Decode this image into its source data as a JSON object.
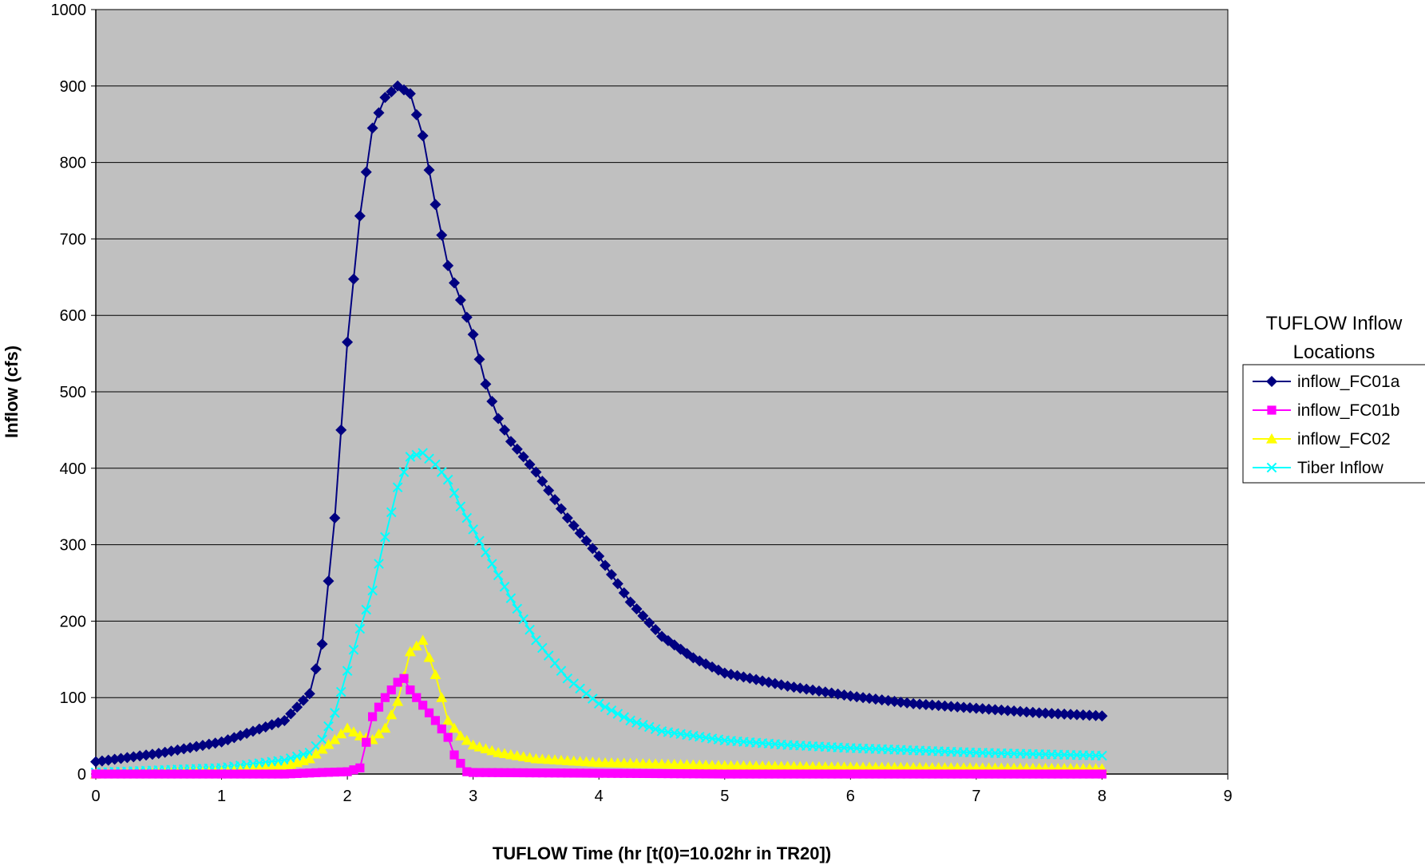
{
  "chart_data": {
    "type": "line",
    "xlabel": "TUFLOW Time (hr [t(0)=10.02hr in TR20])",
    "ylabel": "Inflow (cfs)",
    "xlim": [
      0,
      9
    ],
    "ylim": [
      0,
      1000
    ],
    "xticks": [
      "0",
      "1",
      "2",
      "3",
      "4",
      "5",
      "6",
      "7",
      "8",
      "9"
    ],
    "yticks": [
      "0",
      "100",
      "200",
      "300",
      "400",
      "500",
      "600",
      "700",
      "800",
      "900",
      "1000"
    ],
    "plot_background": "#c0c0c0",
    "grid": "horizontal",
    "legend": {
      "title": [
        "TUFLOW Inflow",
        "Locations"
      ],
      "position": "right"
    },
    "series": [
      {
        "name": "inflow_FC01a",
        "color": "#000080",
        "marker": "diamond",
        "points": [
          [
            0,
            16
          ],
          [
            0.5,
            27
          ],
          [
            1,
            42
          ],
          [
            1.5,
            70
          ],
          [
            1.7,
            105
          ],
          [
            1.8,
            170
          ],
          [
            1.9,
            335
          ],
          [
            2.0,
            565
          ],
          [
            2.1,
            730
          ],
          [
            2.2,
            845
          ],
          [
            2.3,
            885
          ],
          [
            2.4,
            900
          ],
          [
            2.5,
            890
          ],
          [
            2.6,
            835
          ],
          [
            2.7,
            745
          ],
          [
            2.8,
            665
          ],
          [
            2.9,
            620
          ],
          [
            3.0,
            575
          ],
          [
            3.1,
            510
          ],
          [
            3.2,
            465
          ],
          [
            3.3,
            435
          ],
          [
            3.5,
            395
          ],
          [
            3.75,
            335
          ],
          [
            4.0,
            285
          ],
          [
            4.25,
            225
          ],
          [
            4.5,
            180
          ],
          [
            4.75,
            152
          ],
          [
            5.0,
            132
          ],
          [
            5.5,
            115
          ],
          [
            6.0,
            102
          ],
          [
            6.5,
            92
          ],
          [
            7.0,
            86
          ],
          [
            7.5,
            80
          ],
          [
            8.0,
            76
          ]
        ]
      },
      {
        "name": "inflow_FC01b",
        "color": "#ff00ff",
        "marker": "square",
        "points": [
          [
            0,
            0
          ],
          [
            1,
            0
          ],
          [
            1.5,
            0
          ],
          [
            1.8,
            2
          ],
          [
            2.0,
            3
          ],
          [
            2.1,
            8
          ],
          [
            2.2,
            75
          ],
          [
            2.3,
            100
          ],
          [
            2.4,
            120
          ],
          [
            2.45,
            125
          ],
          [
            2.5,
            110
          ],
          [
            2.6,
            90
          ],
          [
            2.7,
            70
          ],
          [
            2.8,
            48
          ],
          [
            2.85,
            25
          ],
          [
            2.95,
            3
          ],
          [
            3.0,
            2
          ],
          [
            4.0,
            1
          ],
          [
            5.0,
            0
          ],
          [
            6.0,
            0
          ],
          [
            7.0,
            0
          ],
          [
            8.0,
            0
          ]
        ]
      },
      {
        "name": "inflow_FC02",
        "color": "#ffff00",
        "marker": "triangle",
        "points": [
          [
            0,
            0
          ],
          [
            1,
            3
          ],
          [
            1.5,
            10
          ],
          [
            1.7,
            20
          ],
          [
            1.9,
            45
          ],
          [
            2.0,
            60
          ],
          [
            2.1,
            50
          ],
          [
            2.2,
            45
          ],
          [
            2.3,
            60
          ],
          [
            2.4,
            95
          ],
          [
            2.5,
            160
          ],
          [
            2.6,
            175
          ],
          [
            2.7,
            130
          ],
          [
            2.8,
            70
          ],
          [
            2.9,
            50
          ],
          [
            3.0,
            38
          ],
          [
            3.2,
            28
          ],
          [
            3.5,
            20
          ],
          [
            4.0,
            15
          ],
          [
            5.0,
            11
          ],
          [
            6.0,
            9
          ],
          [
            7.0,
            8
          ],
          [
            8.0,
            7
          ]
        ]
      },
      {
        "name": "Tiber Inflow",
        "color": "#00ffff",
        "marker": "x",
        "points": [
          [
            0,
            2
          ],
          [
            0.5,
            5
          ],
          [
            1,
            8
          ],
          [
            1.5,
            18
          ],
          [
            1.7,
            28
          ],
          [
            1.8,
            45
          ],
          [
            1.9,
            80
          ],
          [
            2.0,
            135
          ],
          [
            2.1,
            190
          ],
          [
            2.2,
            240
          ],
          [
            2.3,
            310
          ],
          [
            2.4,
            375
          ],
          [
            2.5,
            415
          ],
          [
            2.6,
            420
          ],
          [
            2.7,
            405
          ],
          [
            2.8,
            385
          ],
          [
            2.9,
            350
          ],
          [
            3.0,
            320
          ],
          [
            3.1,
            290
          ],
          [
            3.2,
            260
          ],
          [
            3.3,
            230
          ],
          [
            3.5,
            175
          ],
          [
            3.75,
            125
          ],
          [
            4.0,
            92
          ],
          [
            4.25,
            70
          ],
          [
            4.5,
            56
          ],
          [
            5.0,
            44
          ],
          [
            5.5,
            38
          ],
          [
            6.0,
            34
          ],
          [
            7.0,
            28
          ],
          [
            8.0,
            24
          ]
        ]
      }
    ]
  }
}
